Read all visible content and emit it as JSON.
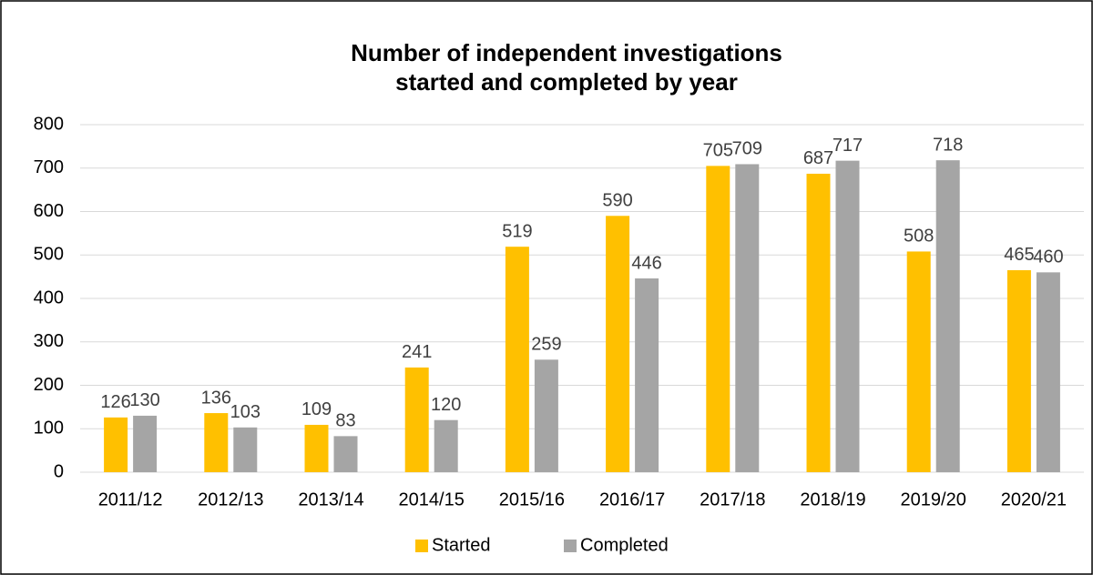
{
  "chart_data": {
    "type": "bar",
    "title": [
      "Number of independent investigations",
      "started and completed by year"
    ],
    "categories": [
      "2011/12",
      "2012/13",
      "2013/14",
      "2014/15",
      "2015/16",
      "2016/17",
      "2017/18",
      "2018/19",
      "2019/20",
      "2020/21"
    ],
    "series": [
      {
        "name": "Started",
        "color": "#ffc000",
        "values": [
          126,
          136,
          109,
          241,
          519,
          590,
          705,
          687,
          508,
          465
        ]
      },
      {
        "name": "Completed",
        "color": "#a5a5a5",
        "values": [
          130,
          103,
          83,
          120,
          259,
          446,
          709,
          717,
          718,
          460
        ]
      }
    ],
    "ylim": [
      0,
      800
    ],
    "yticks": [
      0,
      100,
      200,
      300,
      400,
      500,
      600,
      700,
      800
    ],
    "grid": true,
    "legend": "bottom"
  }
}
